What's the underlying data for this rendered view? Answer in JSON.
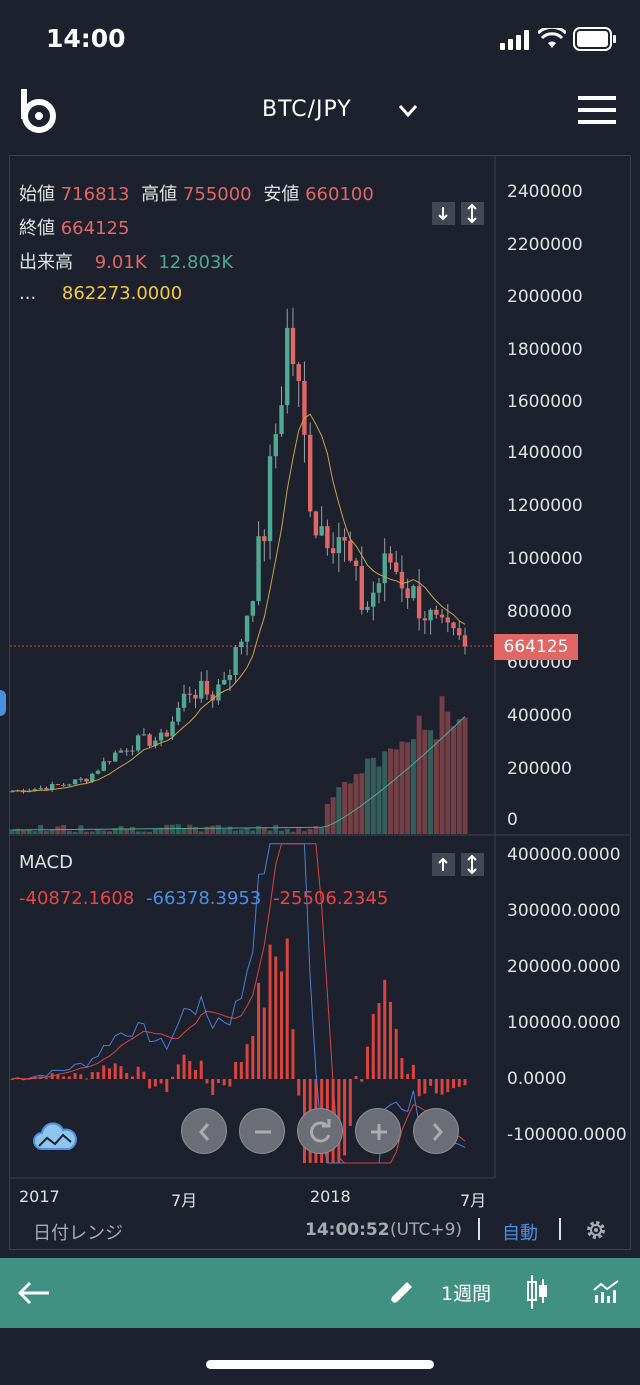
{
  "status_bar": {
    "time": "14:00"
  },
  "header": {
    "pair": "BTC/JPY"
  },
  "ohlc": {
    "open_label": "始値",
    "open": "716813",
    "high_label": "高値",
    "high": "755000",
    "low_label": "安値",
    "low": "660100",
    "close_label": "終値",
    "close": "664125",
    "volume_label": "出来高",
    "volume_1": "9.01K",
    "volume_2": "12.803K",
    "ma_label": "...",
    "ma_value": "862273.0000"
  },
  "price_axis": [
    "2400000",
    "2200000",
    "2000000",
    "1800000",
    "1600000",
    "1400000",
    "1200000",
    "1000000",
    "800000",
    "600000",
    "400000",
    "200000",
    "0"
  ],
  "current_price_tag": "664125",
  "macd": {
    "title": "MACD",
    "value_1": "-40872.1608",
    "value_2": "-66378.3953",
    "value_3": "-25506.2345",
    "axis": [
      "400000.0000",
      "300000.0000",
      "200000.0000",
      "100000.0000",
      "0.0000",
      "-100000.0000"
    ]
  },
  "time_axis": [
    "2017",
    "7月",
    "2018",
    "7月"
  ],
  "footer": {
    "date_range_label": "日付レンジ",
    "clock": "14:00:52",
    "timezone": "(UTC+9)",
    "auto_label": "自動"
  },
  "bottom_bar": {
    "period": "1週間"
  },
  "colors": {
    "background": "#1d212e",
    "up": "#4fa892",
    "down": "#e06763",
    "ma_line": "#c9a34a",
    "macd_line": "#4a7fd4",
    "signal_line": "#d9443f",
    "bottom_bar": "#409181",
    "price_tag": "#e06763"
  },
  "chart_data": {
    "type": "candlestick",
    "x": [
      "2017-01",
      "2017-02",
      "2017-03",
      "2017-04",
      "2017-05",
      "2017-06",
      "2017-07",
      "2017-08",
      "2017-09",
      "2017-10",
      "2017-11",
      "2017-12",
      "2018-01",
      "2018-02",
      "2018-03",
      "2018-04",
      "2018-05",
      "2018-06",
      "2018-07"
    ],
    "close": [
      110000,
      120000,
      135000,
      160000,
      250000,
      300000,
      310000,
      500000,
      480000,
      650000,
      1100000,
      1900000,
      1150000,
      1100000,
      800000,
      1000000,
      850000,
      720000,
      664125
    ],
    "ylim": [
      0,
      2500000
    ],
    "macd_ylim": [
      -150000,
      420000
    ]
  }
}
